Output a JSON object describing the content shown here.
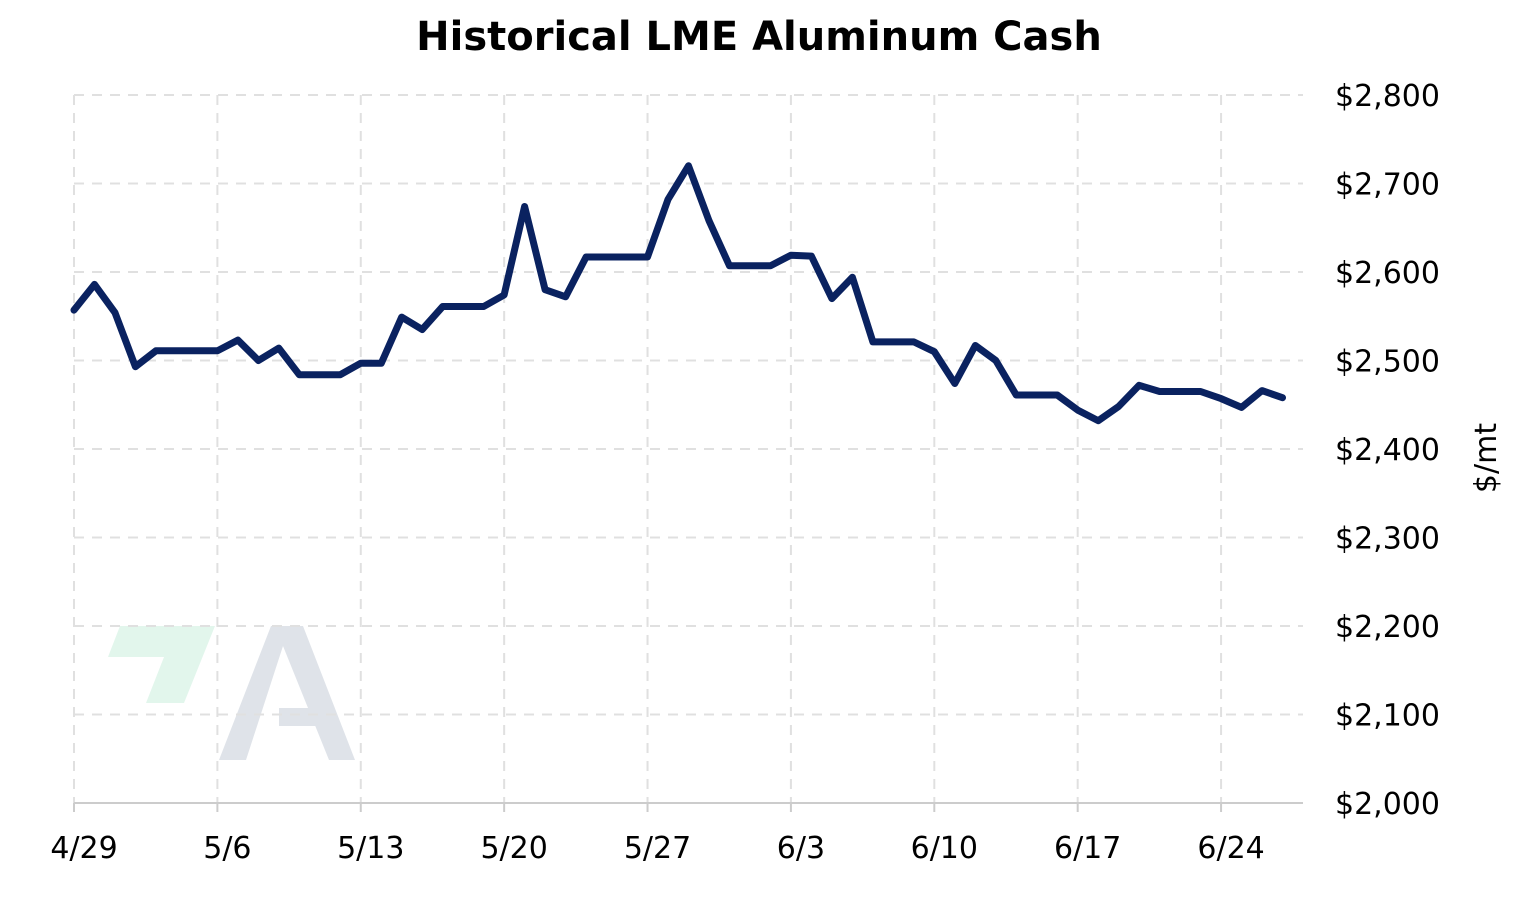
{
  "chart_data": {
    "type": "line",
    "title": "Historical LME Aluminum Cash",
    "xlabel": "",
    "ylabel": "$/mt",
    "ylim": [
      2000,
      2800
    ],
    "y_ticks": [
      2000,
      2100,
      2200,
      2300,
      2400,
      2500,
      2600,
      2700,
      2800
    ],
    "y_tick_labels": [
      "$2,000",
      "$2,100",
      "$2,200",
      "$2,300",
      "$2,400",
      "$2,500",
      "$2,600",
      "$2,700",
      "$2,800"
    ],
    "x_ticks": [
      "2024-04-29",
      "2024-05-06",
      "2024-05-13",
      "2024-05-20",
      "2024-05-27",
      "2024-06-03",
      "2024-06-10",
      "2024-06-17",
      "2024-06-24"
    ],
    "x_tick_labels": [
      "4/29",
      "5/6",
      "5/13",
      "5/20",
      "5/27",
      "6/3",
      "6/10",
      "6/17",
      "6/24"
    ],
    "xlim": [
      "2024-04-29",
      "2024-06-28"
    ],
    "grid": true,
    "grid_style": "dashed",
    "y_axis_position": "right",
    "line_color": "#0a2260",
    "grid_color": "#e0e0e0",
    "series": [
      {
        "x": [
          "2024-04-29",
          "2024-04-30",
          "2024-05-01",
          "2024-05-02",
          "2024-05-03",
          "2024-05-04",
          "2024-05-05",
          "2024-05-06",
          "2024-05-07",
          "2024-05-08",
          "2024-05-09",
          "2024-05-10",
          "2024-05-11",
          "2024-05-12",
          "2024-05-13",
          "2024-05-14",
          "2024-05-15",
          "2024-05-16",
          "2024-05-17",
          "2024-05-18",
          "2024-05-19",
          "2024-05-20",
          "2024-05-21",
          "2024-05-22",
          "2024-05-23",
          "2024-05-24",
          "2024-05-25",
          "2024-05-26",
          "2024-05-27",
          "2024-05-28",
          "2024-05-29",
          "2024-05-30",
          "2024-05-31",
          "2024-06-01",
          "2024-06-02",
          "2024-06-03",
          "2024-06-04",
          "2024-06-05",
          "2024-06-06",
          "2024-06-07",
          "2024-06-08",
          "2024-06-09",
          "2024-06-10",
          "2024-06-11",
          "2024-06-12",
          "2024-06-13",
          "2024-06-14",
          "2024-06-15",
          "2024-06-16",
          "2024-06-17",
          "2024-06-18",
          "2024-06-19",
          "2024-06-20",
          "2024-06-21",
          "2024-06-22",
          "2024-06-23",
          "2024-06-24",
          "2024-06-25",
          "2024-06-26",
          "2024-06-27"
        ],
        "values": [
          2557,
          2586,
          2554,
          2493,
          2511,
          2511,
          2511,
          2511,
          2523,
          2500,
          2514,
          2484,
          2484,
          2484,
          2497,
          2497,
          2549,
          2535,
          2561,
          2561,
          2561,
          2574,
          2674,
          2580,
          2572,
          2617,
          2617,
          2617,
          2617,
          2682,
          2720,
          2658,
          2607,
          2607,
          2607,
          2619,
          2618,
          2570,
          2594,
          2521,
          2521,
          2521,
          2510,
          2474,
          2517,
          2500,
          2461,
          2461,
          2461,
          2444,
          2432,
          2448,
          2472,
          2465,
          2465,
          2465,
          2457,
          2447,
          2466,
          2458
        ]
      }
    ]
  },
  "logo": {
    "primary_color": "#dfe3e9",
    "accent_color": "#e2f6ec"
  }
}
